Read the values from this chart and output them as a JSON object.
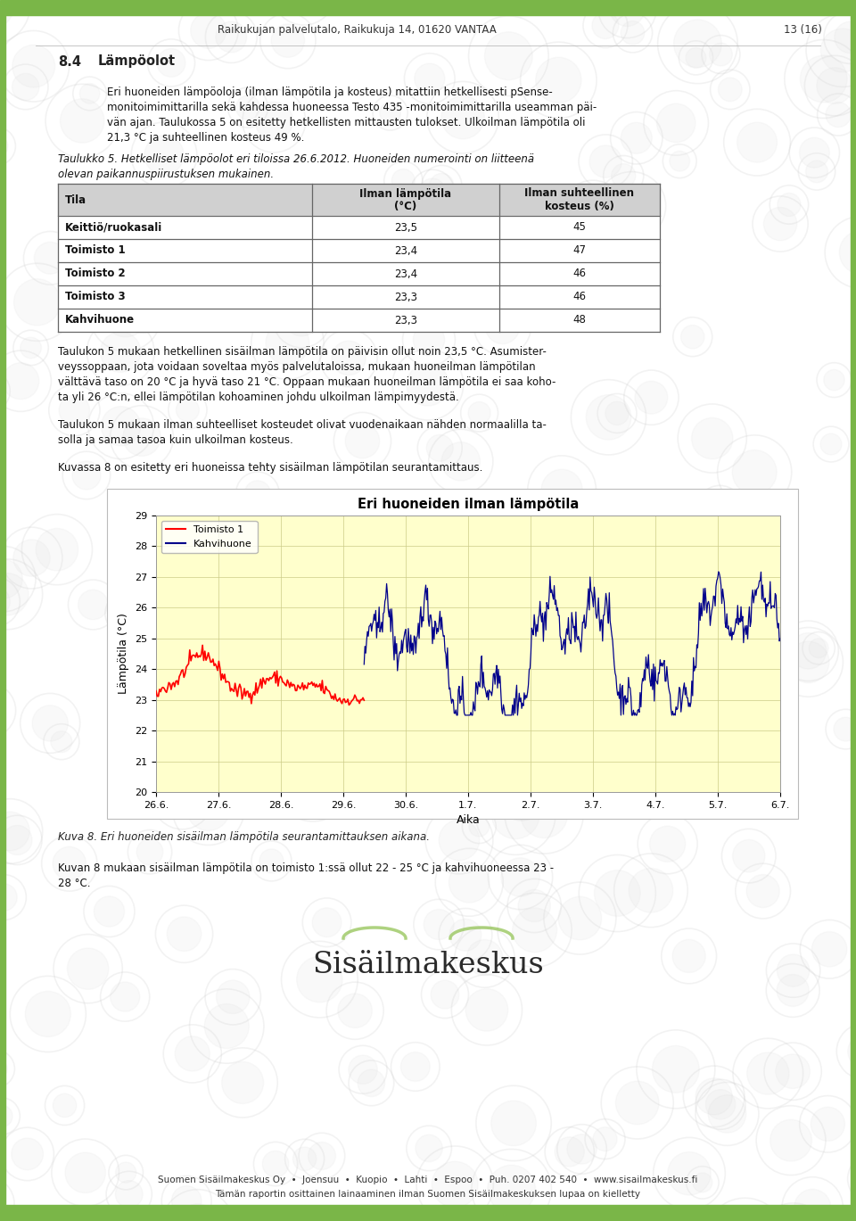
{
  "header_text": "Raikukujan palvelutalo, Raikukuja 14, 01620 VANTAA",
  "page_number": "13 (16)",
  "header_green": "#7ab648",
  "background_color": "#ffffff",
  "section_number": "8.4",
  "section_title": "Lämpöolot",
  "para1_line1": "Eri huoneiden lämpöoloja (ilman lämpötila ja kosteus) mitattiin hetkellisesti pSense-",
  "para1_line2": "monitoimimittarilla sekä kahdessa huoneessa Testo 435 -monitoimimittarilla useamman päi-",
  "para1_line3": "vän ajan. Taulukossa 5 on esitetty hetkellisten mittausten tulokset. Ulkoilman lämpötila oli",
  "para1_line4": "21,3 °C ja suhteellinen kosteus 49 %.",
  "table_caption_line1": "Taulukko 5. Hetkelliset lämpöolot eri tiloissa 26.6.2012. Huoneiden numerointi on liitteenä",
  "table_caption_line2": "olevan paikannuspiirustuksen mukainen.",
  "table_header_col1": "Tila",
  "table_header_col2": "Ilman lämpötila",
  "table_header_col2b": "(°C)",
  "table_header_col3": "Ilman suhteellinen",
  "table_header_col3b": "kosteus (%)",
  "table_rows": [
    [
      "Keittiö/ruokasali",
      "23,5",
      "45"
    ],
    [
      "Toimisto 1",
      "23,4",
      "47"
    ],
    [
      "Toimisto 2",
      "23,4",
      "46"
    ],
    [
      "Toimisto 3",
      "23,3",
      "46"
    ],
    [
      "Kahvihuone",
      "23,3",
      "48"
    ]
  ],
  "para2_line1": "Taulukon 5 mukaan hetkellinen sisäilman lämpötila on päivisin ollut noin 23,5 °C. Asumister-",
  "para2_line2": "veyssoppaan, jota voidaan soveltaa myös palvelutaloissa, mukaan huoneilman lämpötilan",
  "para2_line3": "välttävä taso on 20 °C ja hyvä taso 21 °C. Oppaan mukaan huoneilman lämpötila ei saa koho-",
  "para2_line4": "ta yli 26 °C:n, ellei lämpötilan kohoaminen johdu ulkoilman lämpimyydestä.",
  "para3_line1": "Taulukon 5 mukaan ilman suhteelliset kosteudet olivat vuodenaikaan nähden normaalilla ta-",
  "para3_line2": "solla ja samaa tasoa kuin ulkoilman kosteus.",
  "para4": "Kuvassa 8 on esitetty eri huoneissa tehty sisäilman lämpötilan seurantamittaus.",
  "chart_title": "Eri huoneiden ilman lämpötila",
  "chart_ylabel": "Lämpötila (°C)",
  "chart_xlabel": "Aika",
  "chart_ylim": [
    20,
    29
  ],
  "chart_yticks": [
    20,
    21,
    22,
    23,
    24,
    25,
    26,
    27,
    28,
    29
  ],
  "chart_xtick_labels": [
    "26.6.",
    "27.6.",
    "28.6.",
    "29.6.",
    "30.6.",
    "1.7.",
    "2.7.",
    "3.7.",
    "4.7.",
    "5.7.",
    "6.7."
  ],
  "chart_background": "#ffffcc",
  "chart_legend": [
    "Toimisto 1",
    "Kahvihuone"
  ],
  "chart_colors": [
    "#ff0000",
    "#00008b"
  ],
  "chart_border": "#aaaaaa",
  "caption_text": "Kuva 8. Eri huoneiden sisäilman lämpötila seurantamittauksen aikana.",
  "final_para_line1": "Kuvan 8 mukaan sisäilman lämpötila on toimisto 1:ssä ollut 22 - 25 °C ja kahvihuoneessa 23 -",
  "final_para_line2": "28 °C.",
  "logo_text": "Sisäilmakeskus",
  "footer_text1": "Suomen Sisäilmakeskus Oy  •  Joensuu  •  Kuopio  •  Lahti  •  Espoo  •  Puh. 0207 402 540  •  www.sisailmakeskus.fi",
  "footer_text2": "Tämän raportin osittainen lainaaminen ilman Suomen Sisäilmakeskuksen lupaa on kielletty",
  "footer_green": "#7ab648",
  "table_header_bg": "#d0d0d0",
  "table_row_bg": "#ffffff",
  "table_border_color": "#666666"
}
